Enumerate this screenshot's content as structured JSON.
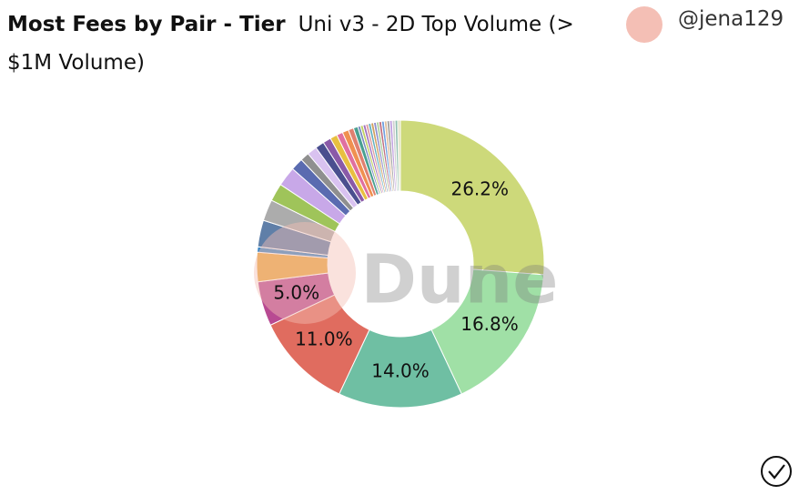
{
  "header": {
    "author": "@jena129"
  },
  "chart_data": {
    "type": "pie",
    "donut": true,
    "title": "Most Fees by Pair - Tier",
    "subtitle": "Uni v3 - 2D Top Volume (> $1M Volume)",
    "watermark": "Dune",
    "categories": [
      null,
      null,
      null,
      null,
      null,
      null,
      null,
      null,
      null,
      null,
      null,
      null,
      null,
      null,
      null,
      null,
      null,
      null,
      null,
      null,
      null,
      null,
      null,
      null,
      null,
      null,
      null,
      null,
      null,
      null,
      null,
      null,
      null,
      null,
      null,
      null,
      null
    ],
    "values": [
      26.2,
      16.8,
      14.0,
      11.0,
      5.0,
      3.3,
      0.6,
      3.0,
      2.4,
      2.0,
      2.2,
      1.4,
      1.0,
      1.1,
      1.0,
      0.9,
      0.8,
      0.7,
      0.7,
      0.6,
      0.5,
      0.3,
      0.3,
      0.3,
      0.3,
      0.3,
      0.3,
      0.3,
      0.3,
      0.3,
      0.3,
      0.3,
      0.3,
      0.3,
      0.3,
      0.3,
      0.3
    ],
    "value_labels": [
      "26.2%",
      "16.8%",
      "14.0%",
      "11.0%",
      "5.0%",
      null,
      null,
      null,
      null,
      null,
      null,
      null,
      null,
      null,
      null,
      null,
      null,
      null,
      null,
      null,
      null,
      null,
      null,
      null,
      null,
      null,
      null,
      null,
      null,
      null,
      null,
      null,
      null,
      null,
      null,
      null,
      null
    ],
    "colors": [
      "#cdd97a",
      "#a0e0a6",
      "#6fbfa3",
      "#e06c5f",
      "#b84a92",
      "#eaa840",
      "#3a85c4",
      "#5f7fa8",
      "#acacac",
      "#9fc45a",
      "#c8a8e8",
      "#5a6bb0",
      "#8f8f8f",
      "#d9c2f0",
      "#4a4f8f",
      "#8a5aa8",
      "#e8c040",
      "#e070a0",
      "#f09050",
      "#e08070",
      "#4aa090",
      "#7a8ac0",
      "#c0d060",
      "#a070c0",
      "#e0a0a0",
      "#60b0c0",
      "#d0a060",
      "#9090d0",
      "#b0d0a0",
      "#c07080",
      "#70a0e0",
      "#e0c0a0",
      "#a0a0a0",
      "#c0a0e0",
      "#d0d0d0",
      "#90c0b0",
      "#e0e0c0"
    ]
  }
}
